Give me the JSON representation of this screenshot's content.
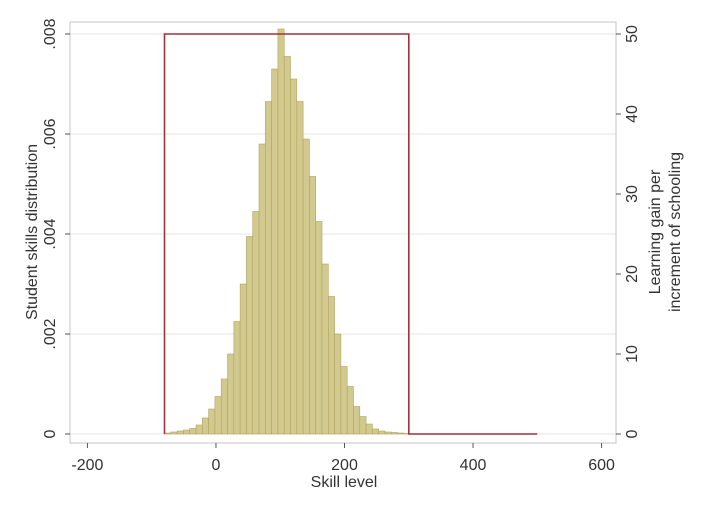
{
  "chart_data": {
    "type": "bar",
    "title": "",
    "xlabel": "Skill level",
    "ylabel_left": "Student skills distribution",
    "ylabel_right_lines": [
      "Learning gain per",
      "increment of schooling"
    ],
    "xlim": [
      -210,
      610
    ],
    "ylim_left": [
      0,
      0.0081
    ],
    "ylim_right": [
      0,
      50.625
    ],
    "x_ticks": [
      -200,
      0,
      200,
      400,
      600
    ],
    "x_tick_labels": [
      "-200",
      "0",
      "200",
      "400",
      "600"
    ],
    "y_left_ticks": [
      0,
      0.002,
      0.004,
      0.006,
      0.008
    ],
    "y_left_tick_labels": [
      "0",
      ".002",
      ".004",
      ".006",
      ".008"
    ],
    "y_right_ticks": [
      0,
      10,
      20,
      30,
      40,
      50
    ],
    "y_right_tick_labels": [
      "0",
      "10",
      "20",
      "30",
      "40",
      "50"
    ],
    "grid": true,
    "legend": "none",
    "histogram": {
      "axis": "left",
      "bin_width": 9.8,
      "bins": [
        {
          "x": -80.0,
          "y": 2e-05
        },
        {
          "x": -70.2,
          "y": 4e-05
        },
        {
          "x": -60.4,
          "y": 6e-05
        },
        {
          "x": -50.6,
          "y": 8e-05
        },
        {
          "x": -40.8,
          "y": 0.00011
        },
        {
          "x": -31.0,
          "y": 0.00018
        },
        {
          "x": -21.2,
          "y": 0.00032
        },
        {
          "x": -11.4,
          "y": 0.0005
        },
        {
          "x": -1.6,
          "y": 0.00075
        },
        {
          "x": 8.2,
          "y": 0.0011
        },
        {
          "x": 18.0,
          "y": 0.0016
        },
        {
          "x": 27.8,
          "y": 0.00225
        },
        {
          "x": 37.6,
          "y": 0.003
        },
        {
          "x": 47.4,
          "y": 0.00395
        },
        {
          "x": 57.2,
          "y": 0.00445
        },
        {
          "x": 67.0,
          "y": 0.0058
        },
        {
          "x": 76.8,
          "y": 0.00665
        },
        {
          "x": 86.6,
          "y": 0.0073
        },
        {
          "x": 96.4,
          "y": 0.0081
        },
        {
          "x": 106.2,
          "y": 0.00755
        },
        {
          "x": 116.0,
          "y": 0.0071
        },
        {
          "x": 125.8,
          "y": 0.00665
        },
        {
          "x": 135.6,
          "y": 0.0059
        },
        {
          "x": 145.4,
          "y": 0.00515
        },
        {
          "x": 155.2,
          "y": 0.00425
        },
        {
          "x": 165.0,
          "y": 0.0034
        },
        {
          "x": 174.8,
          "y": 0.00275
        },
        {
          "x": 184.6,
          "y": 0.002
        },
        {
          "x": 194.4,
          "y": 0.00135
        },
        {
          "x": 204.2,
          "y": 0.00095
        },
        {
          "x": 214.0,
          "y": 0.00055
        },
        {
          "x": 223.8,
          "y": 0.00035
        },
        {
          "x": 233.6,
          "y": 0.0002
        },
        {
          "x": 243.4,
          "y": 0.0001
        },
        {
          "x": 253.2,
          "y": 6e-05
        },
        {
          "x": 263.0,
          "y": 4e-05
        },
        {
          "x": 272.8,
          "y": 3e-05
        },
        {
          "x": 282.6,
          "y": 2e-05
        },
        {
          "x": 292.4,
          "y": 1e-05
        }
      ]
    },
    "step_line": {
      "axis": "right",
      "points": [
        [
          -80,
          30
        ],
        [
          -80,
          0
        ],
        [
          -80,
          50
        ],
        [
          300,
          50
        ],
        [
          300,
          0
        ],
        [
          500,
          0
        ]
      ]
    },
    "colors": {
      "bar_fill": "#d2c98e",
      "bar_stroke": "#b1a460",
      "line": "#a3313a",
      "frame": "#c4c4c4",
      "grid": "#e6e6e6",
      "text": "#333333"
    }
  }
}
